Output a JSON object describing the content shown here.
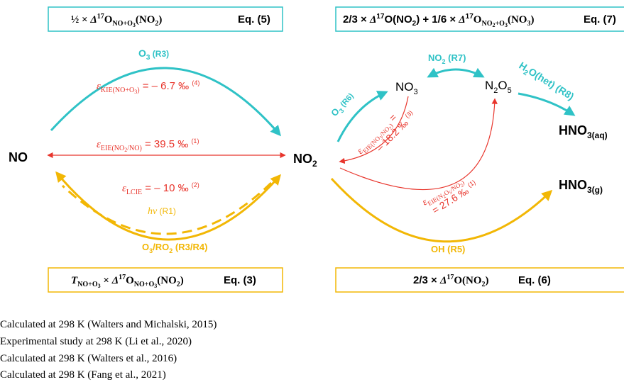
{
  "equations": [
    {
      "formula": [
        "½ × ",
        "Δ",
        "17",
        "O",
        "NO+O",
        "3",
        "(NO",
        "2",
        ")"
      ],
      "label": "Eq. (5)"
    },
    {
      "formula": [
        "2/3 × ",
        "Δ",
        "17",
        "O(NO",
        "2",
        ") + 1/6 × ",
        "Δ",
        "17",
        "O",
        "NO",
        "2",
        "+O",
        "3",
        "(NO",
        "3",
        ")"
      ],
      "label": "Eq. (7)"
    },
    {
      "formula": [
        "T",
        "NO+O",
        "3",
        " × ",
        "Δ",
        "17",
        "O",
        "NO+O",
        "3",
        "(NO",
        "2",
        ")"
      ],
      "label": "Eq. (3)"
    },
    {
      "formula": [
        "2/3 × ",
        "Δ",
        "17",
        "O(NO",
        "2",
        ")"
      ],
      "label": "Eq. (6)"
    }
  ],
  "species": {
    "no": [
      "NO"
    ],
    "no2": [
      "NO",
      "2"
    ],
    "no3": [
      "NO",
      "3"
    ],
    "n2o5": [
      "N",
      "2",
      "O",
      "5"
    ],
    "hno3_aq": [
      "HNO",
      "3(aq)"
    ],
    "hno3_g": [
      "HNO",
      "3(g)"
    ]
  },
  "reactions": {
    "r3": [
      "O",
      "3",
      " (R3)"
    ],
    "r3_r4": [
      "O",
      "3",
      "/RO",
      "2",
      " (R3/R4)"
    ],
    "r1": [
      "hν",
      " (R1)"
    ],
    "r5": [
      "OH (R5)"
    ],
    "r6": [
      "O",
      "3",
      " (R6)"
    ],
    "r7": [
      "NO",
      "2",
      " (R7)"
    ],
    "r8": [
      "H",
      "2",
      "O(het) (R8)"
    ]
  },
  "fractionations": {
    "kie": [
      "ε",
      "KIE(NO+O",
      "3",
      ")",
      " = – 6.7 ‰ ",
      "(4)"
    ],
    "eie_no2": [
      "ε",
      "EIE(NO",
      "2",
      "/NO)",
      " = 39.5 ‰ ",
      "(1)"
    ],
    "lcie": [
      "ε",
      "LCIE",
      " = – 10 ‰ ",
      "(2)"
    ],
    "eie_no3": [
      "ε",
      "EIE(NO",
      "3",
      "/NO",
      "2",
      ")",
      " =",
      "– 18.2 ‰ ",
      "(3)"
    ],
    "eie_n2o5": [
      "ε",
      "EIE(N",
      "2",
      "O",
      "5",
      "/NO",
      "2",
      ")",
      "= 27.6 ‰ ",
      "(1)"
    ]
  },
  "footnotes": [
    "Calculated at 298 K (Walters and Michalski, 2015)",
    "Experimental study at 298 K (Li et al., 2020)",
    "Calculated at 298 K (Walters et al., 2016)",
    "Calculated at 298 K (Fang et al., 2021)"
  ]
}
